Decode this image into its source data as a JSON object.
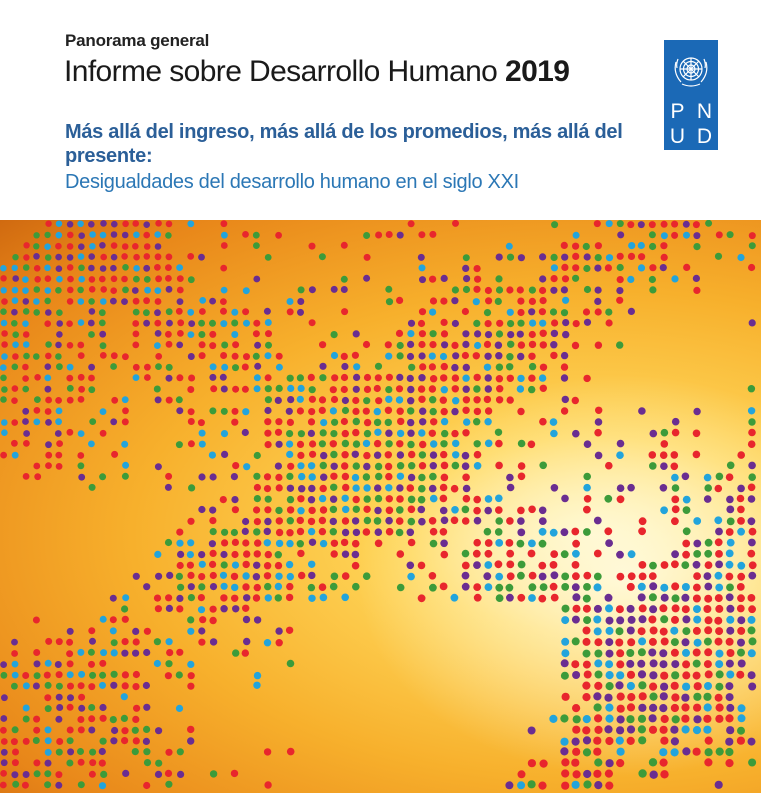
{
  "header": {
    "kicker": "Panorama general",
    "title_main": "Informe sobre Desarrollo Humano ",
    "title_year": "2019",
    "subtitle": "Más allá del ingreso, más allá de los promedios, más allá del presente:",
    "subsubtitle": "Desigualdades del desarrollo humano en el siglo XXI"
  },
  "logo": {
    "letters": [
      "P",
      "N",
      "U",
      "D"
    ],
    "icon": "un-emblem-icon",
    "color": "#1b69b6"
  },
  "cover": {
    "image": "dotted-globe-map",
    "dot_colors": [
      "#e8262d",
      "#6a2d91",
      "#22a4dc",
      "#3c9b3a"
    ],
    "background_colors": [
      "#fff4b8",
      "#ffd75a",
      "#f7b02c",
      "#d06a10"
    ]
  }
}
